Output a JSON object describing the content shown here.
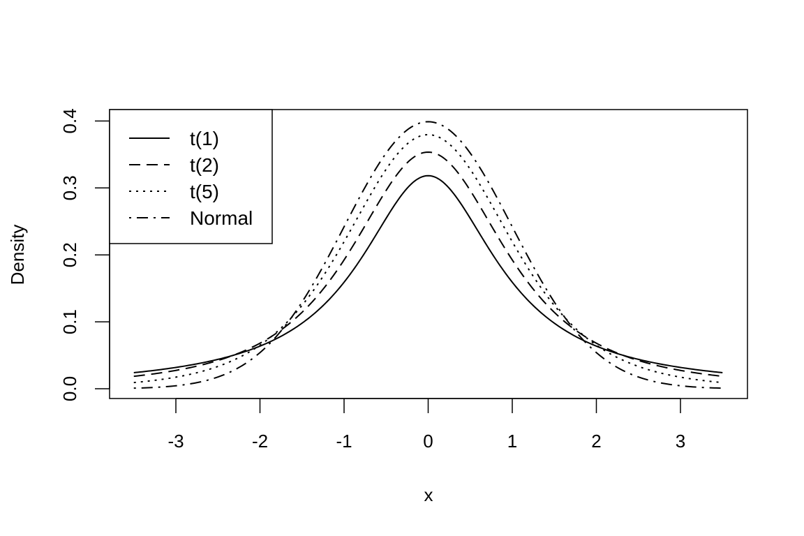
{
  "chart_data": {
    "type": "line",
    "xlabel": "x",
    "ylabel": "Density",
    "xlim": [
      -3.5,
      3.5
    ],
    "ylim": [
      0,
      0.4
    ],
    "x_ticks": [
      -3,
      -2,
      -1,
      0,
      1,
      2,
      3
    ],
    "x_tick_labels": [
      "-3",
      "-2",
      "-1",
      "0",
      "1",
      "2",
      "3"
    ],
    "y_ticks": [
      0,
      0.1,
      0.2,
      0.3,
      0.4
    ],
    "y_tick_labels": [
      "0.0",
      "0.1",
      "0.2",
      "0.3",
      "0.4"
    ],
    "grid": false,
    "legend_position": "top-left",
    "x": [
      -3.5,
      -3,
      -2.5,
      -2,
      -1.5,
      -1,
      -0.5,
      0,
      0.5,
      1,
      1.5,
      2,
      2.5,
      3,
      3.5
    ],
    "series": [
      {
        "name": "t(1)",
        "dash": "solid",
        "values": [
          0.0235,
          0.0318,
          0.0439,
          0.0637,
          0.0979,
          0.1592,
          0.2546,
          0.3183,
          0.2546,
          0.1592,
          0.0979,
          0.0637,
          0.0439,
          0.0318,
          0.0235
        ]
      },
      {
        "name": "t(2)",
        "dash": "dashed",
        "values": [
          0.0185,
          0.0274,
          0.0422,
          0.068,
          0.1134,
          0.1925,
          0.2962,
          0.3536,
          0.2962,
          0.1925,
          0.1134,
          0.068,
          0.0422,
          0.0274,
          0.0185
        ]
      },
      {
        "name": "t(5)",
        "dash": "dotted",
        "values": [
          0.0097,
          0.0173,
          0.0329,
          0.0651,
          0.1245,
          0.2197,
          0.3279,
          0.3796,
          0.3279,
          0.2197,
          0.1245,
          0.0651,
          0.0329,
          0.0173,
          0.0097
        ]
      },
      {
        "name": "Normal",
        "dash": "dotdash",
        "values": [
          0.0009,
          0.0044,
          0.0175,
          0.054,
          0.1295,
          0.242,
          0.3521,
          0.3989,
          0.3521,
          0.242,
          0.1295,
          0.054,
          0.0175,
          0.0044,
          0.0009
        ]
      }
    ]
  }
}
